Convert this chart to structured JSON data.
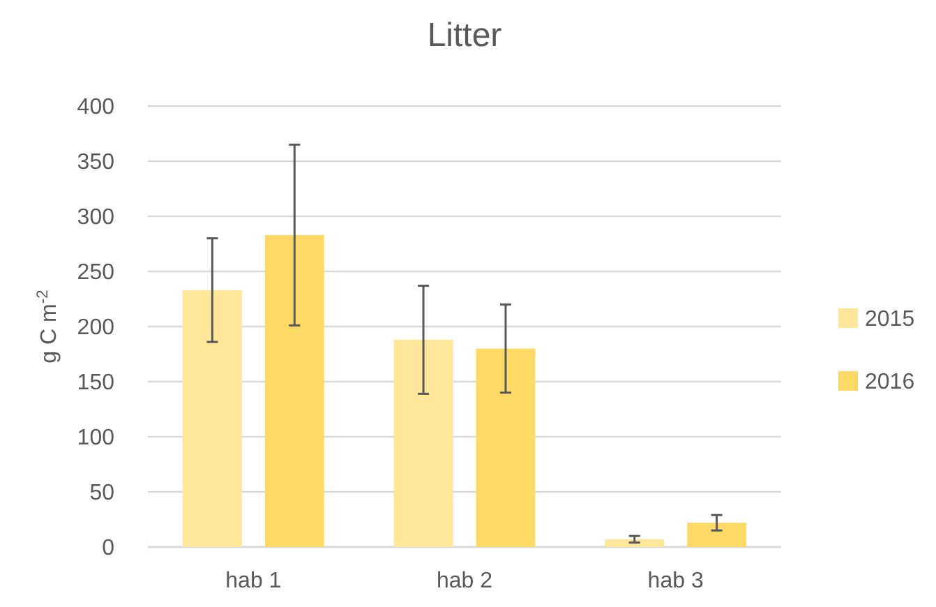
{
  "chart_data": {
    "type": "bar",
    "title": "Litter",
    "ylabel": "g C m$^{-2}$",
    "categories": [
      "hab 1",
      "hab 2",
      "hab 3"
    ],
    "series": [
      {
        "name": "2015",
        "color": "#ffe699",
        "values": [
          233,
          188,
          7
        ],
        "errors": [
          47,
          49,
          3
        ]
      },
      {
        "name": "2016",
        "color": "#ffd966",
        "values": [
          283,
          180,
          22
        ],
        "errors": [
          82,
          40,
          7
        ]
      }
    ],
    "ylim": [
      0,
      400
    ],
    "yticks": [
      0,
      50,
      100,
      150,
      200,
      250,
      300,
      350,
      400
    ],
    "grid": "y",
    "legend": "right"
  }
}
